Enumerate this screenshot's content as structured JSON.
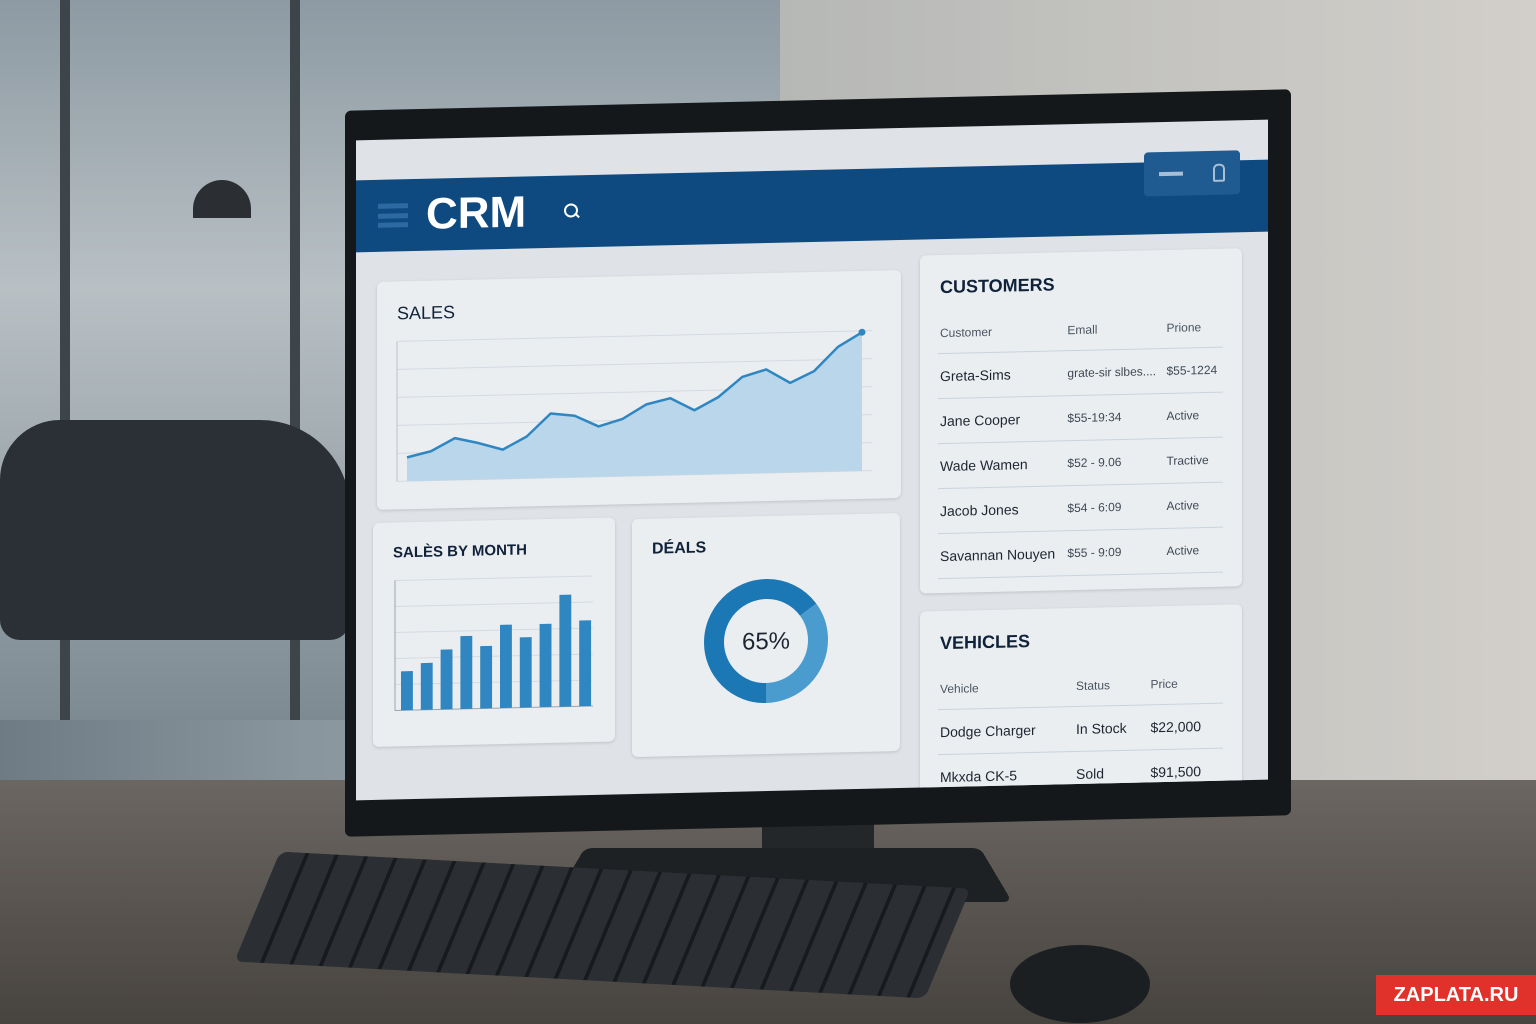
{
  "app": {
    "title": "CRM"
  },
  "sales": {
    "title": "SALES"
  },
  "sales_by_month": {
    "title": "SALÈS BY MONTH"
  },
  "deals": {
    "title": "DÉALS",
    "percent_label": "65%",
    "percent": 65
  },
  "customers": {
    "title": "CUSTOMERS",
    "columns": [
      "Customer",
      "Emall",
      "Prione"
    ],
    "rows": [
      [
        "Greta-Sims",
        "grate-sir slbes....",
        "$55-1224"
      ],
      [
        "Jane Cooper",
        "$55-19:34",
        "Active"
      ],
      [
        "Wade Wamen",
        "$52 - 9.06",
        "Tractive"
      ],
      [
        "Jacob Jones",
        "$54 - 6:09",
        "Active"
      ],
      [
        "Savannan Nouyen",
        "$55 - 9:09",
        "Active"
      ]
    ]
  },
  "vehicles": {
    "title": "VEHICLES",
    "columns": [
      "Vehicle",
      "Status",
      "Price"
    ],
    "rows": [
      [
        "Dodge Charger",
        "In Stock",
        "$22,000"
      ],
      [
        "Mkxda CK-5",
        "Sold",
        "$91,500"
      ]
    ]
  },
  "watermark": "ZAPLATA.RU",
  "colors": {
    "header": "#0e4a80",
    "accent": "#2f86c0",
    "fill": "#b9d6ea"
  },
  "chart_data": [
    {
      "type": "area",
      "title": "SALES",
      "x": [
        1,
        2,
        3,
        4,
        5,
        6,
        7,
        8,
        9,
        10,
        11,
        12,
        13,
        14,
        15,
        16,
        17,
        18,
        19,
        20
      ],
      "values": [
        17,
        21,
        30,
        26,
        21,
        30,
        46,
        44,
        36,
        41,
        51,
        55,
        46,
        55,
        69,
        74,
        64,
        72,
        89,
        99
      ],
      "ylim": [
        0,
        100
      ],
      "grid": true
    },
    {
      "type": "bar",
      "title": "SALÈS BY MONTH",
      "values": [
        1.5,
        1.8,
        2.3,
        2.8,
        2.4,
        3.2,
        2.7,
        3.2,
        4.3,
        3.3
      ],
      "ylim": [
        0,
        5
      ],
      "grid": true
    },
    {
      "type": "pie",
      "title": "DÉALS",
      "values": [
        65,
        35
      ],
      "donut": true
    }
  ]
}
